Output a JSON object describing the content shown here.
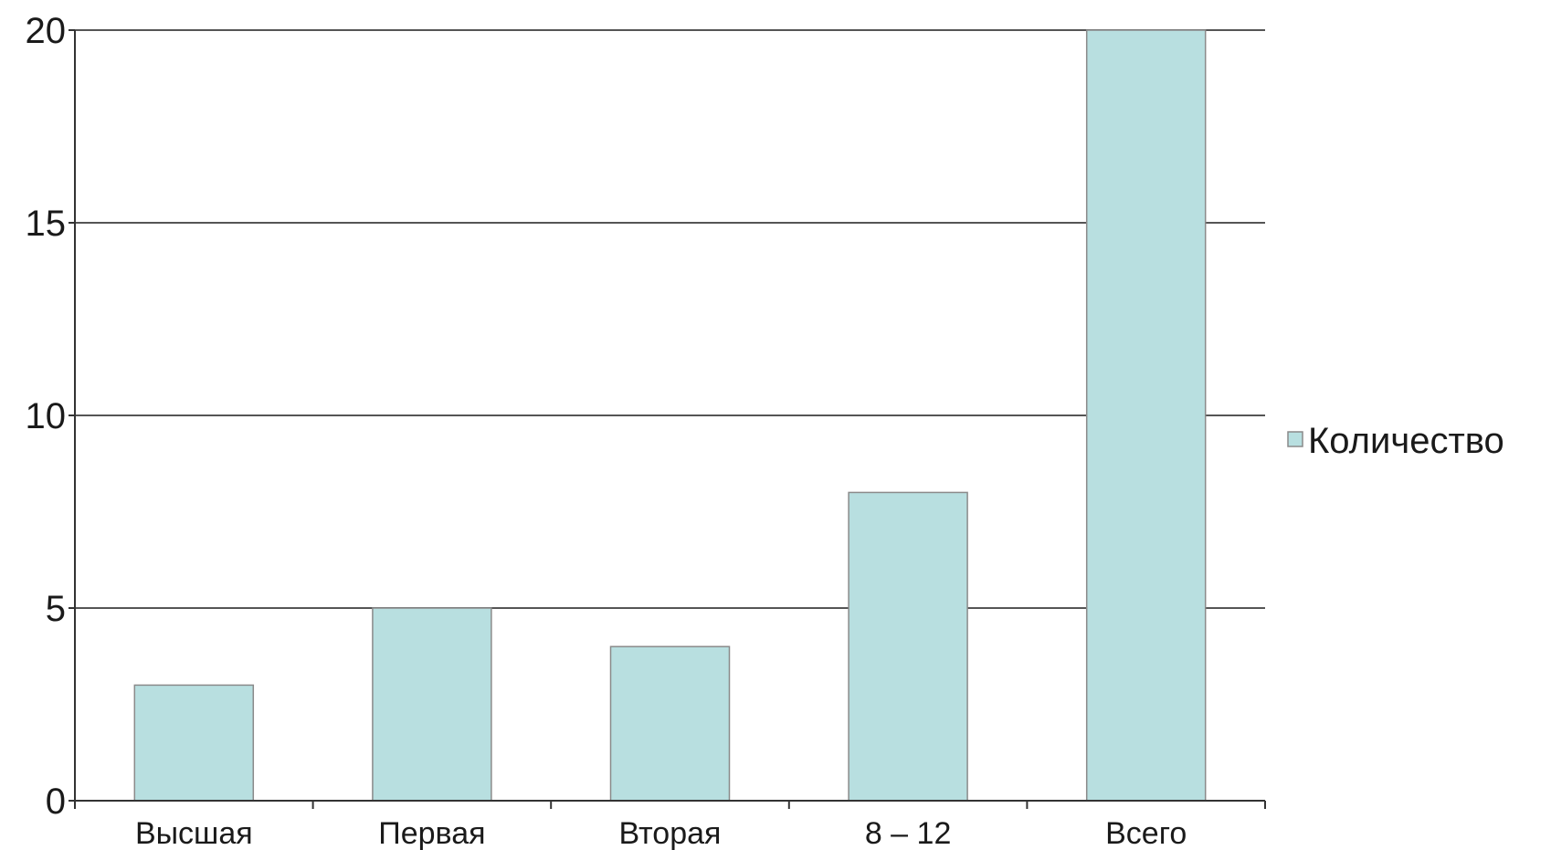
{
  "chart_data": {
    "type": "bar",
    "categories": [
      "Высшая",
      "Первая",
      "Вторая",
      "8 – 12",
      "Всего"
    ],
    "series": [
      {
        "name": "Количество",
        "values": [
          3,
          5,
          4,
          8,
          20
        ]
      }
    ],
    "ylim": [
      0,
      20
    ],
    "yticks": [
      0,
      5,
      10,
      15,
      20
    ],
    "ytick_labels": [
      "0",
      "5",
      "10",
      "15",
      "20"
    ],
    "title": "",
    "xlabel": "",
    "ylabel": "",
    "grid": true,
    "legend_position": "right",
    "colors": {
      "bar_fill": "#b8dfe0",
      "bar_stroke": "#8a8a8a",
      "gridline": "#555555",
      "axis": "#333333"
    }
  }
}
